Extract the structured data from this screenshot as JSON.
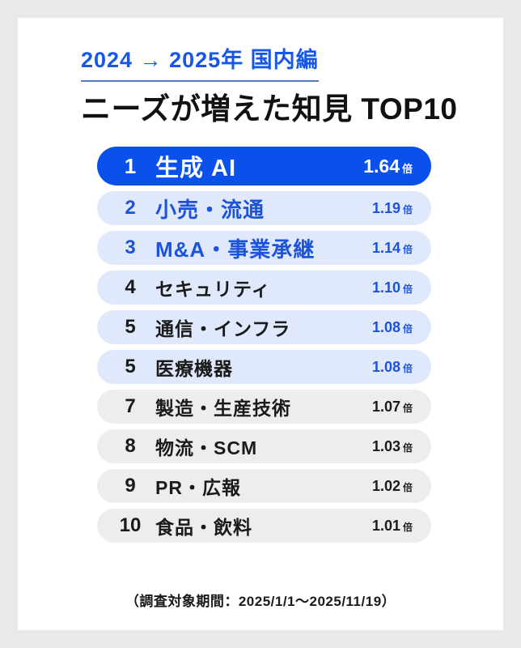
{
  "colors": {
    "page_background": "#e9e9e9",
    "card_background": "#ffffff",
    "header_blue": "#1657e8",
    "underline_blue": "#537dbd",
    "rank1_background": "#0a51ec",
    "light_blue_background": "#dfe9fb",
    "blue_text": "#1d53d8",
    "gray_background": "#ededed",
    "black_text": "#1a1a1a"
  },
  "header": {
    "period": "2024 → 2025年 国内編",
    "title": "ニーズが増えた知見 TOP10"
  },
  "footer": {
    "note": "（調査対象期間：2025/1/1～2025/11/19）"
  },
  "chart_data": {
    "type": "table",
    "subtitle": "2024 → 2025年 国内編",
    "title": "ニーズが増えた知見 TOP10",
    "unit": "倍",
    "footnote": "（調査対象期間：2025/1/1～2025/11/19）",
    "rows": [
      {
        "rank": "1",
        "label": "生成 AI",
        "value": "1.64",
        "tier": "top"
      },
      {
        "rank": "2",
        "label": "小売・流通",
        "value": "1.19",
        "tier": "high"
      },
      {
        "rank": "3",
        "label": "M&A・事業承継",
        "value": "1.14",
        "tier": "high"
      },
      {
        "rank": "4",
        "label": "セキュリティ",
        "value": "1.10",
        "tier": "mid"
      },
      {
        "rank": "5",
        "label": "通信・インフラ",
        "value": "1.08",
        "tier": "mid"
      },
      {
        "rank": "5",
        "label": "医療機器",
        "value": "1.08",
        "tier": "mid"
      },
      {
        "rank": "7",
        "label": "製造・生産技術",
        "value": "1.07",
        "tier": "low"
      },
      {
        "rank": "8",
        "label": "物流・SCM",
        "value": "1.03",
        "tier": "low"
      },
      {
        "rank": "9",
        "label": "PR・広報",
        "value": "1.02",
        "tier": "low"
      },
      {
        "rank": "10",
        "label": "食品・飲料",
        "value": "1.01",
        "tier": "low"
      }
    ]
  }
}
